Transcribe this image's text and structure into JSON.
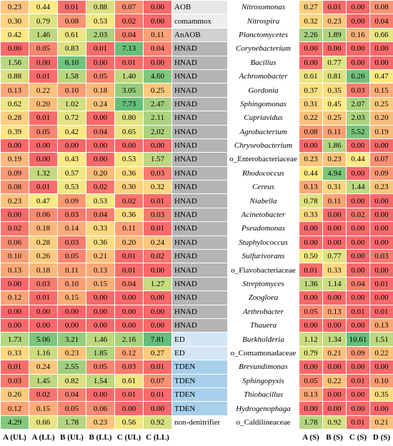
{
  "table": {
    "left_headers": [
      "A (UL)",
      "A (LL)",
      "B (UL)",
      "B (LL)",
      "C (UL)",
      "C (LL)"
    ],
    "right_headers": [
      "A (S)",
      "B (S)",
      "C (S)",
      "D (S)"
    ],
    "rows": [
      {
        "group": "AOB",
        "taxon": "Nitrosomonas",
        "left": [
          "0.23",
          "0.44",
          "0.01",
          "0.88",
          "0.07",
          "0.00"
        ],
        "right": [
          "0.27",
          "0.01",
          "0.00",
          "0.08"
        ]
      },
      {
        "group": "comammox",
        "taxon": "Nitrospira",
        "left": [
          "0.30",
          "0.79",
          "0.08",
          "0.53",
          "0.02",
          "0.00"
        ],
        "right": [
          "0.32",
          "0.23",
          "0.00",
          "0.04"
        ]
      },
      {
        "group": "AnAOB",
        "taxon": "Planctomycetes",
        "left": [
          "0.42",
          "1.46",
          "0.61",
          "2.03",
          "0.04",
          "0.11"
        ],
        "right": [
          "2.26",
          "1.89",
          "0.16",
          "0.66"
        ]
      },
      {
        "group": "HNAD",
        "taxon": "Corynebacterium",
        "left": [
          "0.00",
          "0.05",
          "0.83",
          "0.01",
          "7.13",
          "0.04"
        ],
        "right": [
          "0.00",
          "0.00",
          "0.00",
          "0.00"
        ]
      },
      {
        "group": "HNAD",
        "taxon": "Bacillus",
        "left": [
          "1.56",
          "0.00",
          "6.10",
          "0.00",
          "0.01",
          "0.00"
        ],
        "right": [
          "0.00",
          "0.77",
          "0.00",
          "0.00"
        ]
      },
      {
        "group": "HNAD",
        "taxon": "Achromobacter",
        "left": [
          "0.88",
          "0.01",
          "1.58",
          "0.05",
          "1.40",
          "4.60"
        ],
        "right": [
          "0.61",
          "0.81",
          "6.26",
          "0.47"
        ]
      },
      {
        "group": "HNAD",
        "taxon": "Gordonia",
        "left": [
          "0.13",
          "0.22",
          "0.10",
          "0.18",
          "3.05",
          "0.25"
        ],
        "right": [
          "0.37",
          "0.35",
          "0.03",
          "0.15"
        ]
      },
      {
        "group": "HNAD",
        "taxon": "Sphingomonas",
        "left": [
          "0.62",
          "0.20",
          "1.02",
          "0.24",
          "7.73",
          "2.47"
        ],
        "right": [
          "0.31",
          "0.45",
          "2.07",
          "0.25"
        ]
      },
      {
        "group": "HNAD",
        "taxon": "Cupriavidus",
        "left": [
          "0.28",
          "0.01",
          "0.72",
          "0.00",
          "0.80",
          "2.11"
        ],
        "right": [
          "0.22",
          "0.25",
          "2.03",
          "0.20"
        ]
      },
      {
        "group": "HNAD",
        "taxon": "Agrobacterium",
        "left": [
          "0.39",
          "0.05",
          "0.42",
          "0.04",
          "0.65",
          "2.02"
        ],
        "right": [
          "0.08",
          "0.11",
          "5.52",
          "0.19"
        ]
      },
      {
        "group": "HNAD",
        "taxon": "Chryseobacterium",
        "left": [
          "0.00",
          "0.00",
          "0.00",
          "0.00",
          "0.00",
          "0.00"
        ],
        "right": [
          "0.00",
          "1.86",
          "0.00",
          "0.00"
        ]
      },
      {
        "group": "HNAD",
        "taxon": "o_Enterobacteriaceae",
        "left": [
          "0.19",
          "0.00",
          "0.43",
          "0.00",
          "0.53",
          "1.57"
        ],
        "right": [
          "0.23",
          "0.23",
          "0.44",
          "0.07"
        ]
      },
      {
        "group": "HNAD",
        "taxon": "Rhodococcus",
        "left": [
          "0.09",
          "1.32",
          "0.57",
          "0.20",
          "0.36",
          "0.03"
        ],
        "right": [
          "0.44",
          "4.94",
          "0.00",
          "0.09"
        ]
      },
      {
        "group": "HNAD",
        "taxon": "Cereus",
        "left": [
          "0.08",
          "0.01",
          "0.53",
          "0.02",
          "0.30",
          "0.32"
        ],
        "right": [
          "0.13",
          "0.31",
          "1.44",
          "0.23"
        ]
      },
      {
        "group": "HNAD",
        "taxon": "Niabella",
        "left": [
          "0.23",
          "0.47",
          "0.09",
          "0.53",
          "0.02",
          "0.01"
        ],
        "right": [
          "0.78",
          "0.11",
          "0.00",
          "0.00"
        ]
      },
      {
        "group": "HNAD",
        "taxon": "Acinetobacter",
        "left": [
          "0.00",
          "0.06",
          "0.03",
          "0.04",
          "0.36",
          "0.03"
        ],
        "right": [
          "0.33",
          "0.00",
          "0.02",
          "0.00"
        ]
      },
      {
        "group": "HNAD",
        "taxon": "Pseudomonas",
        "left": [
          "0.02",
          "0.18",
          "0.14",
          "0.33",
          "0.11",
          "0.01"
        ],
        "right": [
          "0.00",
          "0.00",
          "0.00",
          "0.00"
        ]
      },
      {
        "group": "HNAD",
        "taxon": "Staphylococcus",
        "left": [
          "0.06",
          "0.28",
          "0.03",
          "0.36",
          "0.20",
          "0.24"
        ],
        "right": [
          "0.00",
          "0.00",
          "0.00",
          "0.00"
        ]
      },
      {
        "group": "HNAD",
        "taxon": "Sulfurivorans",
        "left": [
          "0.10",
          "0.26",
          "0.05",
          "0.21",
          "0.01",
          "0.02"
        ],
        "right": [
          "0.50",
          "0.77",
          "0.00",
          "0.03"
        ]
      },
      {
        "group": "HNAD",
        "taxon": "o_Flavobacteriaceae",
        "left": [
          "0.13",
          "0.18",
          "0.11",
          "0.13",
          "0.01",
          "0.00"
        ],
        "right": [
          "0.01",
          "0.33",
          "0.00",
          "0.00"
        ]
      },
      {
        "group": "HNAD",
        "taxon": "Streptomyces",
        "left": [
          "0.00",
          "0.03",
          "0.10",
          "0.15",
          "0.04",
          "1.27"
        ],
        "right": [
          "1.36",
          "1.14",
          "0.04",
          "0.01"
        ]
      },
      {
        "group": "HNAD",
        "taxon": "Zoogloea",
        "left": [
          "0.12",
          "0.01",
          "0.15",
          "0.00",
          "0.00",
          "0.00"
        ],
        "right": [
          "0.00",
          "0.00",
          "0.00",
          "0.00"
        ]
      },
      {
        "group": "HNAD",
        "taxon": "Arthrobacter",
        "left": [
          "0.00",
          "0.00",
          "0.00",
          "0.00",
          "0.00",
          "0.00"
        ],
        "right": [
          "0.05",
          "0.13",
          "0.01",
          "0.01"
        ]
      },
      {
        "group": "HNAD",
        "taxon": "Thauera",
        "left": [
          "0.00",
          "0.00",
          "0.00",
          "0.00",
          "0.00",
          "0.00"
        ],
        "right": [
          "0.00",
          "0.00",
          "0.00",
          "0.13"
        ]
      },
      {
        "group": "ED",
        "taxon": "Burkholderia",
        "left": [
          "1.73",
          "5.06",
          "3.21",
          "1.46",
          "2.16",
          "7.81"
        ],
        "right": [
          "1.12",
          "1.34",
          "10.61",
          "1.51"
        ]
      },
      {
        "group": "ED",
        "taxon": "o_Comamonadaceae",
        "left": [
          "0.33",
          "1.16",
          "0.23",
          "1.85",
          "0.12",
          "0.27"
        ],
        "right": [
          "0.79",
          "0.21",
          "0.09",
          "0.22"
        ]
      },
      {
        "group": "TDEN",
        "taxon": "Brevundimonas",
        "left": [
          "0.01",
          "0.24",
          "2.55",
          "0.05",
          "0.03",
          "0.01"
        ],
        "right": [
          "0.00",
          "0.00",
          "0.00",
          "0.00"
        ]
      },
      {
        "group": "TDEN",
        "taxon": "Sphingopyxis",
        "left": [
          "0.03",
          "1.45",
          "0.82",
          "1.54",
          "0.61",
          "0.07"
        ],
        "right": [
          "0.05",
          "0.22",
          "0.01",
          "0.10"
        ]
      },
      {
        "group": "TDEN",
        "taxon": "Thiobacillus",
        "left": [
          "0.26",
          "0.02",
          "0.04",
          "0.00",
          "0.01",
          "0.01"
        ],
        "right": [
          "0.13",
          "0.00",
          "0.00",
          "0.35"
        ]
      },
      {
        "group": "TDEN",
        "taxon": "Hydrogenophaga",
        "left": [
          "0.12",
          "0.15",
          "0.05",
          "0.06",
          "0.00",
          "0.00"
        ],
        "right": [
          "0.00",
          "0.00",
          "0.00",
          "0.00"
        ]
      },
      {
        "group": "non-denitrifier",
        "taxon": "o_Caldilineaceae",
        "left": [
          "4.29",
          "0.66",
          "1.78",
          "0.23",
          "0.56",
          "0.92"
        ],
        "right": [
          "1.78",
          "0.92",
          "0.01",
          "0.21"
        ]
      }
    ]
  }
}
